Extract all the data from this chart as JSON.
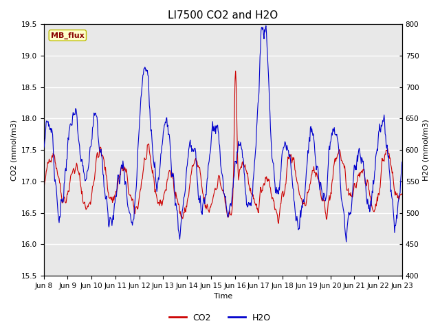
{
  "title": "LI7500 CO2 and H2O",
  "xlabel": "Time",
  "ylabel_left": "CO2 (mmol/m3)",
  "ylabel_right": "H2O (mmol/m3)",
  "co2_ylim": [
    15.5,
    19.5
  ],
  "h2o_ylim": [
    400,
    800
  ],
  "xtick_labels": [
    "Jun 8",
    "Jun 9",
    "Jun 10",
    "Jun 11",
    "Jun 12",
    "Jun 13",
    "Jun 14",
    "Jun 15",
    "Jun 16",
    "Jun 17",
    "Jun 18",
    "Jun 19",
    "Jun 20",
    "Jun 21",
    "Jun 22",
    "Jun 23"
  ],
  "co2_color": "#CC0000",
  "h2o_color": "#0000CC",
  "background_color": "#E8E8E8",
  "fig_bg": "#FFFFFF",
  "annotation_text": "MB_flux",
  "annotation_bg": "#FFFFCC",
  "annotation_edge": "#BBBB00",
  "legend_co2": "CO2",
  "legend_h2o": "H2O",
  "title_fontsize": 11,
  "label_fontsize": 8,
  "tick_fontsize": 7.5
}
